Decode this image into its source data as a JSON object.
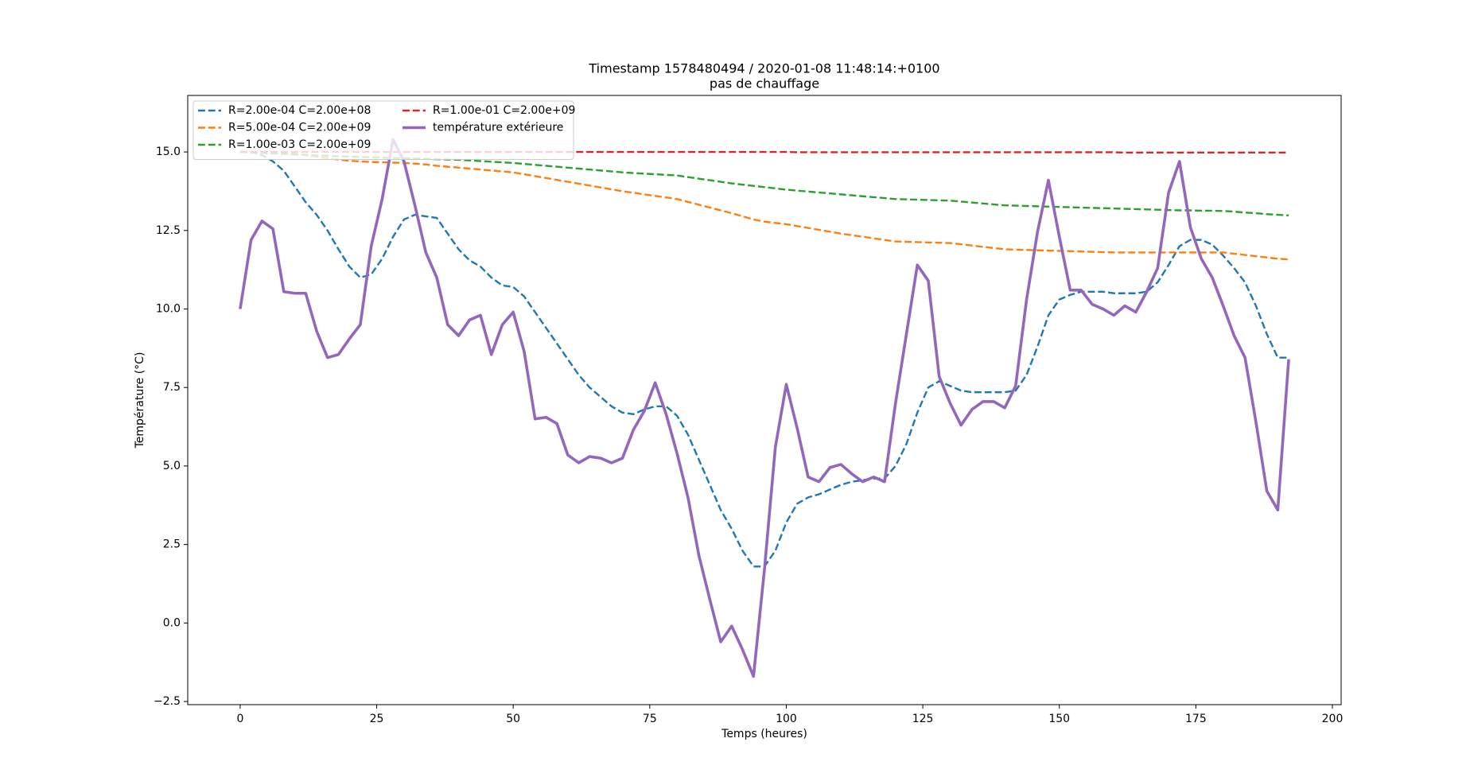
{
  "chart_data": {
    "type": "line",
    "title": "Timestamp 1578480494 / 2020-01-08 11:48:14:+0100",
    "subtitle": "pas de chauffage",
    "xlabel": "Temps (heures)",
    "ylabel": "Température (°C)",
    "xlim": [
      -9.6,
      201.6
    ],
    "ylim": [
      -2.6,
      16.8
    ],
    "xticks": [
      0,
      25,
      50,
      75,
      100,
      125,
      150,
      175,
      200
    ],
    "yticks": [
      {
        "value": -2.5,
        "label": "−2.5"
      },
      {
        "value": 0,
        "label": "0.0"
      },
      {
        "value": 2.5,
        "label": "2.5"
      },
      {
        "value": 5,
        "label": "5.0"
      },
      {
        "value": 7.5,
        "label": "7.5"
      },
      {
        "value": 10,
        "label": "10.0"
      },
      {
        "value": 12.5,
        "label": "12.5"
      },
      {
        "value": 15,
        "label": "15.0"
      }
    ],
    "grid": false,
    "legend": {
      "loc": "upper left",
      "ncol": 2
    },
    "x": [
      0,
      2,
      4,
      6,
      8,
      10,
      12,
      14,
      16,
      18,
      20,
      22,
      24,
      26,
      28,
      30,
      32,
      34,
      36,
      38,
      40,
      42,
      44,
      46,
      48,
      50,
      52,
      54,
      56,
      58,
      60,
      62,
      64,
      66,
      68,
      70,
      72,
      74,
      76,
      78,
      80,
      82,
      84,
      86,
      88,
      90,
      92,
      94,
      96,
      98,
      100,
      102,
      104,
      106,
      108,
      110,
      112,
      114,
      116,
      118,
      120,
      122,
      124,
      126,
      128,
      130,
      132,
      134,
      136,
      138,
      140,
      142,
      144,
      146,
      148,
      150,
      152,
      154,
      156,
      158,
      160,
      162,
      164,
      166,
      168,
      170,
      172,
      174,
      176,
      178,
      180,
      182,
      184,
      186,
      188,
      190,
      192
    ],
    "series": [
      {
        "name": "R=2.00e-04 C=2.00e+08",
        "color": "#1f77b4",
        "dash": true,
        "values": [
          15.0,
          15.0,
          14.9,
          14.7,
          14.4,
          13.9,
          13.4,
          13.0,
          12.5,
          11.9,
          11.35,
          11.0,
          11.1,
          11.6,
          12.3,
          12.85,
          13.0,
          12.95,
          12.9,
          12.4,
          11.9,
          11.55,
          11.35,
          11.0,
          10.75,
          10.7,
          10.4,
          9.9,
          9.4,
          8.9,
          8.4,
          7.9,
          7.5,
          7.2,
          6.9,
          6.7,
          6.65,
          6.8,
          6.9,
          6.9,
          6.6,
          6.0,
          5.2,
          4.4,
          3.6,
          3.0,
          2.3,
          1.8,
          1.8,
          2.3,
          3.2,
          3.8,
          4.0,
          4.1,
          4.25,
          4.4,
          4.5,
          4.55,
          4.6,
          4.6,
          5.0,
          5.7,
          6.7,
          7.5,
          7.7,
          7.55,
          7.4,
          7.35,
          7.35,
          7.35,
          7.35,
          7.4,
          7.9,
          8.8,
          9.8,
          10.3,
          10.45,
          10.55,
          10.55,
          10.55,
          10.5,
          10.5,
          10.5,
          10.55,
          10.85,
          11.4,
          12.0,
          12.2,
          12.2,
          12.05,
          11.7,
          11.3,
          10.85,
          10.1,
          9.2,
          8.45,
          8.45
        ]
      },
      {
        "name": "R=5.00e-04 C=2.00e+09",
        "color": "#ff7f0e",
        "dash": true,
        "values": [
          15.0,
          15.0,
          14.99,
          14.98,
          14.97,
          14.95,
          14.9,
          14.85,
          14.8,
          14.76,
          14.72,
          14.7,
          14.68,
          14.67,
          14.66,
          14.65,
          14.63,
          14.6,
          14.56,
          14.53,
          14.5,
          14.47,
          14.44,
          14.41,
          14.38,
          14.35,
          14.29,
          14.23,
          14.17,
          14.11,
          14.05,
          13.99,
          13.93,
          13.87,
          13.81,
          13.75,
          13.7,
          13.65,
          13.6,
          13.55,
          13.5,
          13.41,
          13.32,
          13.23,
          13.14,
          13.05,
          12.95,
          12.85,
          12.78,
          12.74,
          12.7,
          12.64,
          12.58,
          12.52,
          12.46,
          12.4,
          12.35,
          12.3,
          12.25,
          12.2,
          12.15,
          12.14,
          12.13,
          12.12,
          12.11,
          12.1,
          12.06,
          12.02,
          11.98,
          11.94,
          11.9,
          11.89,
          11.88,
          11.87,
          11.86,
          11.85,
          11.84,
          11.83,
          11.82,
          11.81,
          11.8,
          11.8,
          11.8,
          11.8,
          11.8,
          11.8,
          11.8,
          11.8,
          11.8,
          11.8,
          11.8,
          11.76,
          11.72,
          11.68,
          11.64,
          11.6,
          11.58
        ]
      },
      {
        "name": "R=1.00e-03 C=2.00e+09",
        "color": "#2ca02c",
        "dash": true,
        "values": [
          15.0,
          14.98,
          14.97,
          14.95,
          14.94,
          14.92,
          14.91,
          14.89,
          14.88,
          14.86,
          14.85,
          14.84,
          14.83,
          14.82,
          14.81,
          14.8,
          14.79,
          14.78,
          14.77,
          14.76,
          14.75,
          14.73,
          14.71,
          14.69,
          14.67,
          14.65,
          14.62,
          14.59,
          14.56,
          14.53,
          14.5,
          14.47,
          14.44,
          14.41,
          14.38,
          14.35,
          14.33,
          14.31,
          14.29,
          14.27,
          14.25,
          14.2,
          14.15,
          14.1,
          14.05,
          14.0,
          13.96,
          13.92,
          13.88,
          13.84,
          13.8,
          13.77,
          13.74,
          13.71,
          13.68,
          13.65,
          13.62,
          13.59,
          13.56,
          13.53,
          13.5,
          13.49,
          13.48,
          13.47,
          13.46,
          13.45,
          13.42,
          13.39,
          13.36,
          13.33,
          13.3,
          13.29,
          13.28,
          13.27,
          13.26,
          13.25,
          13.24,
          13.23,
          13.22,
          13.21,
          13.2,
          13.19,
          13.18,
          13.17,
          13.16,
          13.15,
          13.14,
          13.14,
          13.13,
          13.13,
          13.12,
          13.1,
          13.07,
          13.05,
          13.02,
          13.0,
          12.98
        ]
      },
      {
        "name": "R=1.00e-01 C=2.00e+09",
        "color": "#d62728",
        "dash": true,
        "values": [
          15.0,
          15.0,
          15.0,
          15.0,
          15.0,
          15.0,
          15.0,
          15.0,
          15.0,
          15.0,
          15.0,
          15.0,
          15.0,
          15.0,
          15.0,
          15.0,
          15.0,
          15.0,
          15.0,
          15.0,
          15.0,
          15.0,
          15.0,
          15.0,
          15.0,
          15.0,
          15.0,
          15.0,
          15.0,
          15.0,
          15.0,
          15.0,
          15.0,
          15.0,
          15.0,
          15.0,
          15.0,
          15.0,
          15.0,
          15.0,
          15.0,
          15.0,
          15.0,
          15.0,
          15.0,
          15.0,
          15.0,
          15.0,
          15.0,
          15.0,
          15.0,
          14.99,
          14.99,
          14.99,
          14.99,
          14.99,
          14.99,
          14.99,
          14.99,
          14.99,
          14.99,
          14.99,
          14.99,
          14.99,
          14.99,
          14.99,
          14.99,
          14.99,
          14.99,
          14.99,
          14.99,
          14.99,
          14.99,
          14.99,
          14.99,
          14.99,
          14.99,
          14.99,
          14.99,
          14.99,
          14.99,
          14.98,
          14.98,
          14.98,
          14.98,
          14.98,
          14.98,
          14.98,
          14.98,
          14.98,
          14.98,
          14.98,
          14.98,
          14.98,
          14.98,
          14.98,
          14.98
        ]
      },
      {
        "name": "température extérieure",
        "color": "#9467bd",
        "dash": false,
        "values": [
          10.0,
          12.2,
          12.8,
          12.55,
          10.55,
          10.5,
          10.5,
          9.3,
          8.45,
          8.55,
          9.05,
          9.5,
          12.0,
          13.5,
          15.4,
          14.7,
          13.3,
          11.8,
          11.0,
          9.5,
          9.15,
          9.65,
          9.8,
          8.55,
          9.5,
          9.9,
          8.65,
          6.5,
          6.55,
          6.35,
          5.35,
          5.1,
          5.3,
          5.25,
          5.1,
          5.25,
          6.15,
          6.75,
          7.65,
          6.65,
          5.4,
          4.0,
          2.15,
          0.75,
          -0.6,
          -0.1,
          -0.85,
          -1.7,
          1.7,
          5.6,
          7.6,
          6.2,
          4.65,
          4.5,
          4.95,
          5.05,
          4.75,
          4.5,
          4.65,
          4.5,
          7.0,
          9.2,
          11.4,
          10.9,
          7.85,
          7.0,
          6.3,
          6.8,
          7.05,
          7.05,
          6.85,
          7.55,
          10.3,
          12.45,
          14.1,
          12.3,
          10.6,
          10.6,
          10.15,
          10.0,
          9.8,
          10.1,
          9.9,
          10.55,
          11.3,
          13.7,
          14.7,
          12.6,
          11.6,
          11.0,
          10.1,
          9.15,
          8.45,
          6.4,
          4.2,
          3.6,
          8.4
        ]
      }
    ]
  }
}
